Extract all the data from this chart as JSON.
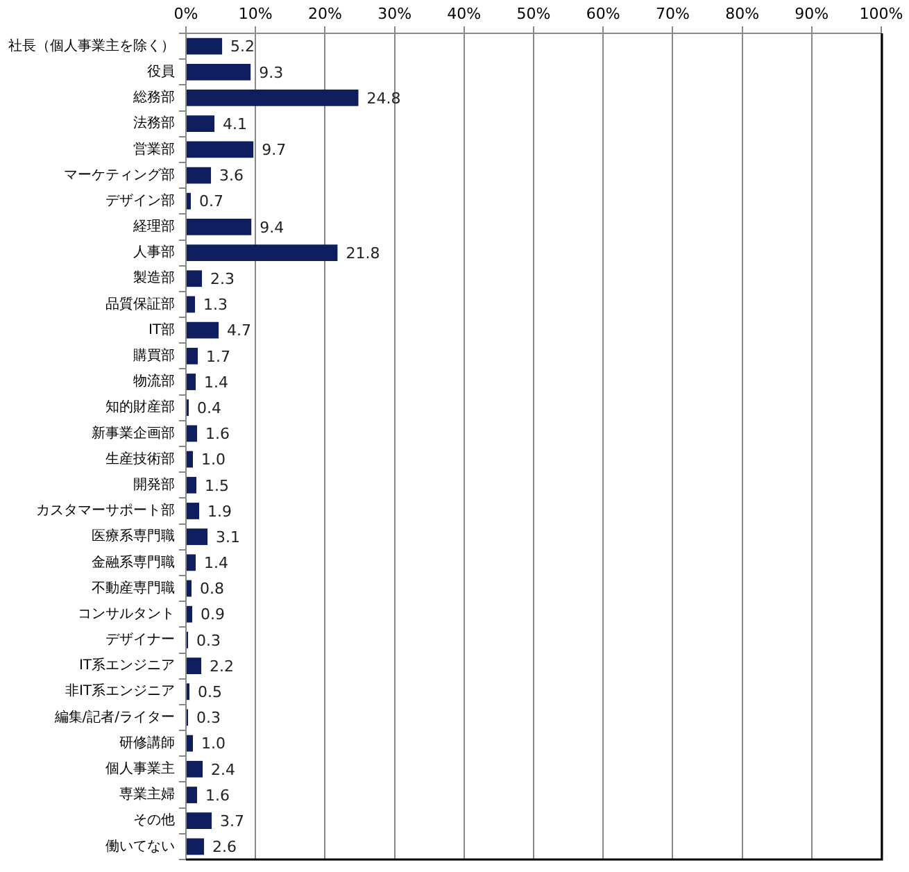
{
  "chart_data": {
    "type": "bar",
    "orientation": "horizontal",
    "categories": [
      "社長（個人事業主を除く）",
      "役員",
      "総務部",
      "法務部",
      "営業部",
      "マーケティング部",
      "デザイン部",
      "経理部",
      "人事部",
      "製造部",
      "品質保証部",
      "IT部",
      "購買部",
      "物流部",
      "知的財産部",
      "新事業企画部",
      "生産技術部",
      "開発部",
      "カスタマーサポート部",
      "医療系専門職",
      "金融系専門職",
      "不動産専門職",
      "コンサルタント",
      "デザイナー",
      "IT系エンジニア",
      "非IT系エンジニア",
      "編集/記者/ライター",
      "研修講師",
      "個人事業主",
      "専業主婦",
      "その他",
      "働いてない"
    ],
    "values": [
      5.2,
      9.3,
      24.8,
      4.1,
      9.7,
      3.6,
      0.7,
      9.4,
      21.8,
      2.3,
      1.3,
      4.7,
      1.7,
      1.4,
      0.4,
      1.6,
      1.0,
      1.5,
      1.9,
      3.1,
      1.4,
      0.8,
      0.9,
      0.3,
      2.2,
      0.5,
      0.3,
      1.0,
      2.4,
      1.6,
      3.7,
      2.6
    ],
    "value_labels": [
      "5.2",
      "9.3",
      "24.8",
      "4.1",
      "9.7",
      "3.6",
      "0.7",
      "9.4",
      "21.8",
      "2.3",
      "1.3",
      "4.7",
      "1.7",
      "1.4",
      "0.4",
      "1.6",
      "1.0",
      "1.5",
      "1.9",
      "3.1",
      "1.4",
      "0.8",
      "0.9",
      "0.3",
      "2.2",
      "0.5",
      "0.3",
      "1.0",
      "2.4",
      "1.6",
      "3.7",
      "2.6"
    ],
    "color": "#0f1e5e",
    "xlim": [
      0,
      100
    ],
    "xticks": [
      {
        "value": 0,
        "label": "0%"
      },
      {
        "value": 10,
        "label": "10%"
      },
      {
        "value": 20,
        "label": "20%"
      },
      {
        "value": 30,
        "label": "30%"
      },
      {
        "value": 40,
        "label": "40%"
      },
      {
        "value": 50,
        "label": "50%"
      },
      {
        "value": 60,
        "label": "60%"
      },
      {
        "value": 70,
        "label": "70%"
      },
      {
        "value": 80,
        "label": "80%"
      },
      {
        "value": 90,
        "label": "90%"
      },
      {
        "value": 100,
        "label": "100%"
      }
    ],
    "grid": "x"
  }
}
